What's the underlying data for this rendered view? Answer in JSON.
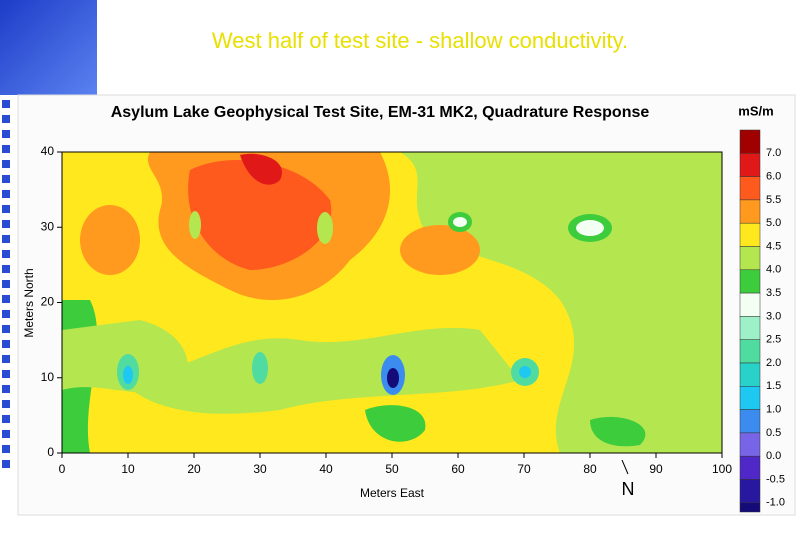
{
  "slide": {
    "title": "West half of test site - shallow conductivity."
  },
  "figure": {
    "title": "Asylum Lake Geophysical Test Site, EM-31 MK2, Quadrature Response",
    "x_label": "Meters East",
    "y_label": "Meters North",
    "north_label": "N",
    "xticks": [
      0,
      10,
      20,
      30,
      40,
      50,
      60,
      70,
      80,
      90,
      100
    ],
    "yticks": [
      0,
      10,
      20,
      30,
      40
    ],
    "xlim": [
      0,
      100
    ],
    "ylim": [
      0,
      40
    ],
    "colorbar": {
      "unit": "mS/m",
      "labels": [
        "7.0",
        "6.0",
        "5.5",
        "5.0",
        "4.5",
        "4.0",
        "3.5",
        "3.0",
        "2.5",
        "2.0",
        "1.5",
        "1.0",
        "0.5",
        "0.0",
        "-0.5",
        "-1.0"
      ],
      "colors": [
        "#a00000",
        "#e01818",
        "#ff5a1e",
        "#ff9a1e",
        "#ffe81e",
        "#b4e650",
        "#3ccc3c",
        "#f4fff4",
        "#9ef0c8",
        "#50dca0",
        "#28d2c8",
        "#1ec8f0",
        "#3c8cf0",
        "#7864e6",
        "#5028c8",
        "#2818a0",
        "#140a78"
      ]
    }
  }
}
